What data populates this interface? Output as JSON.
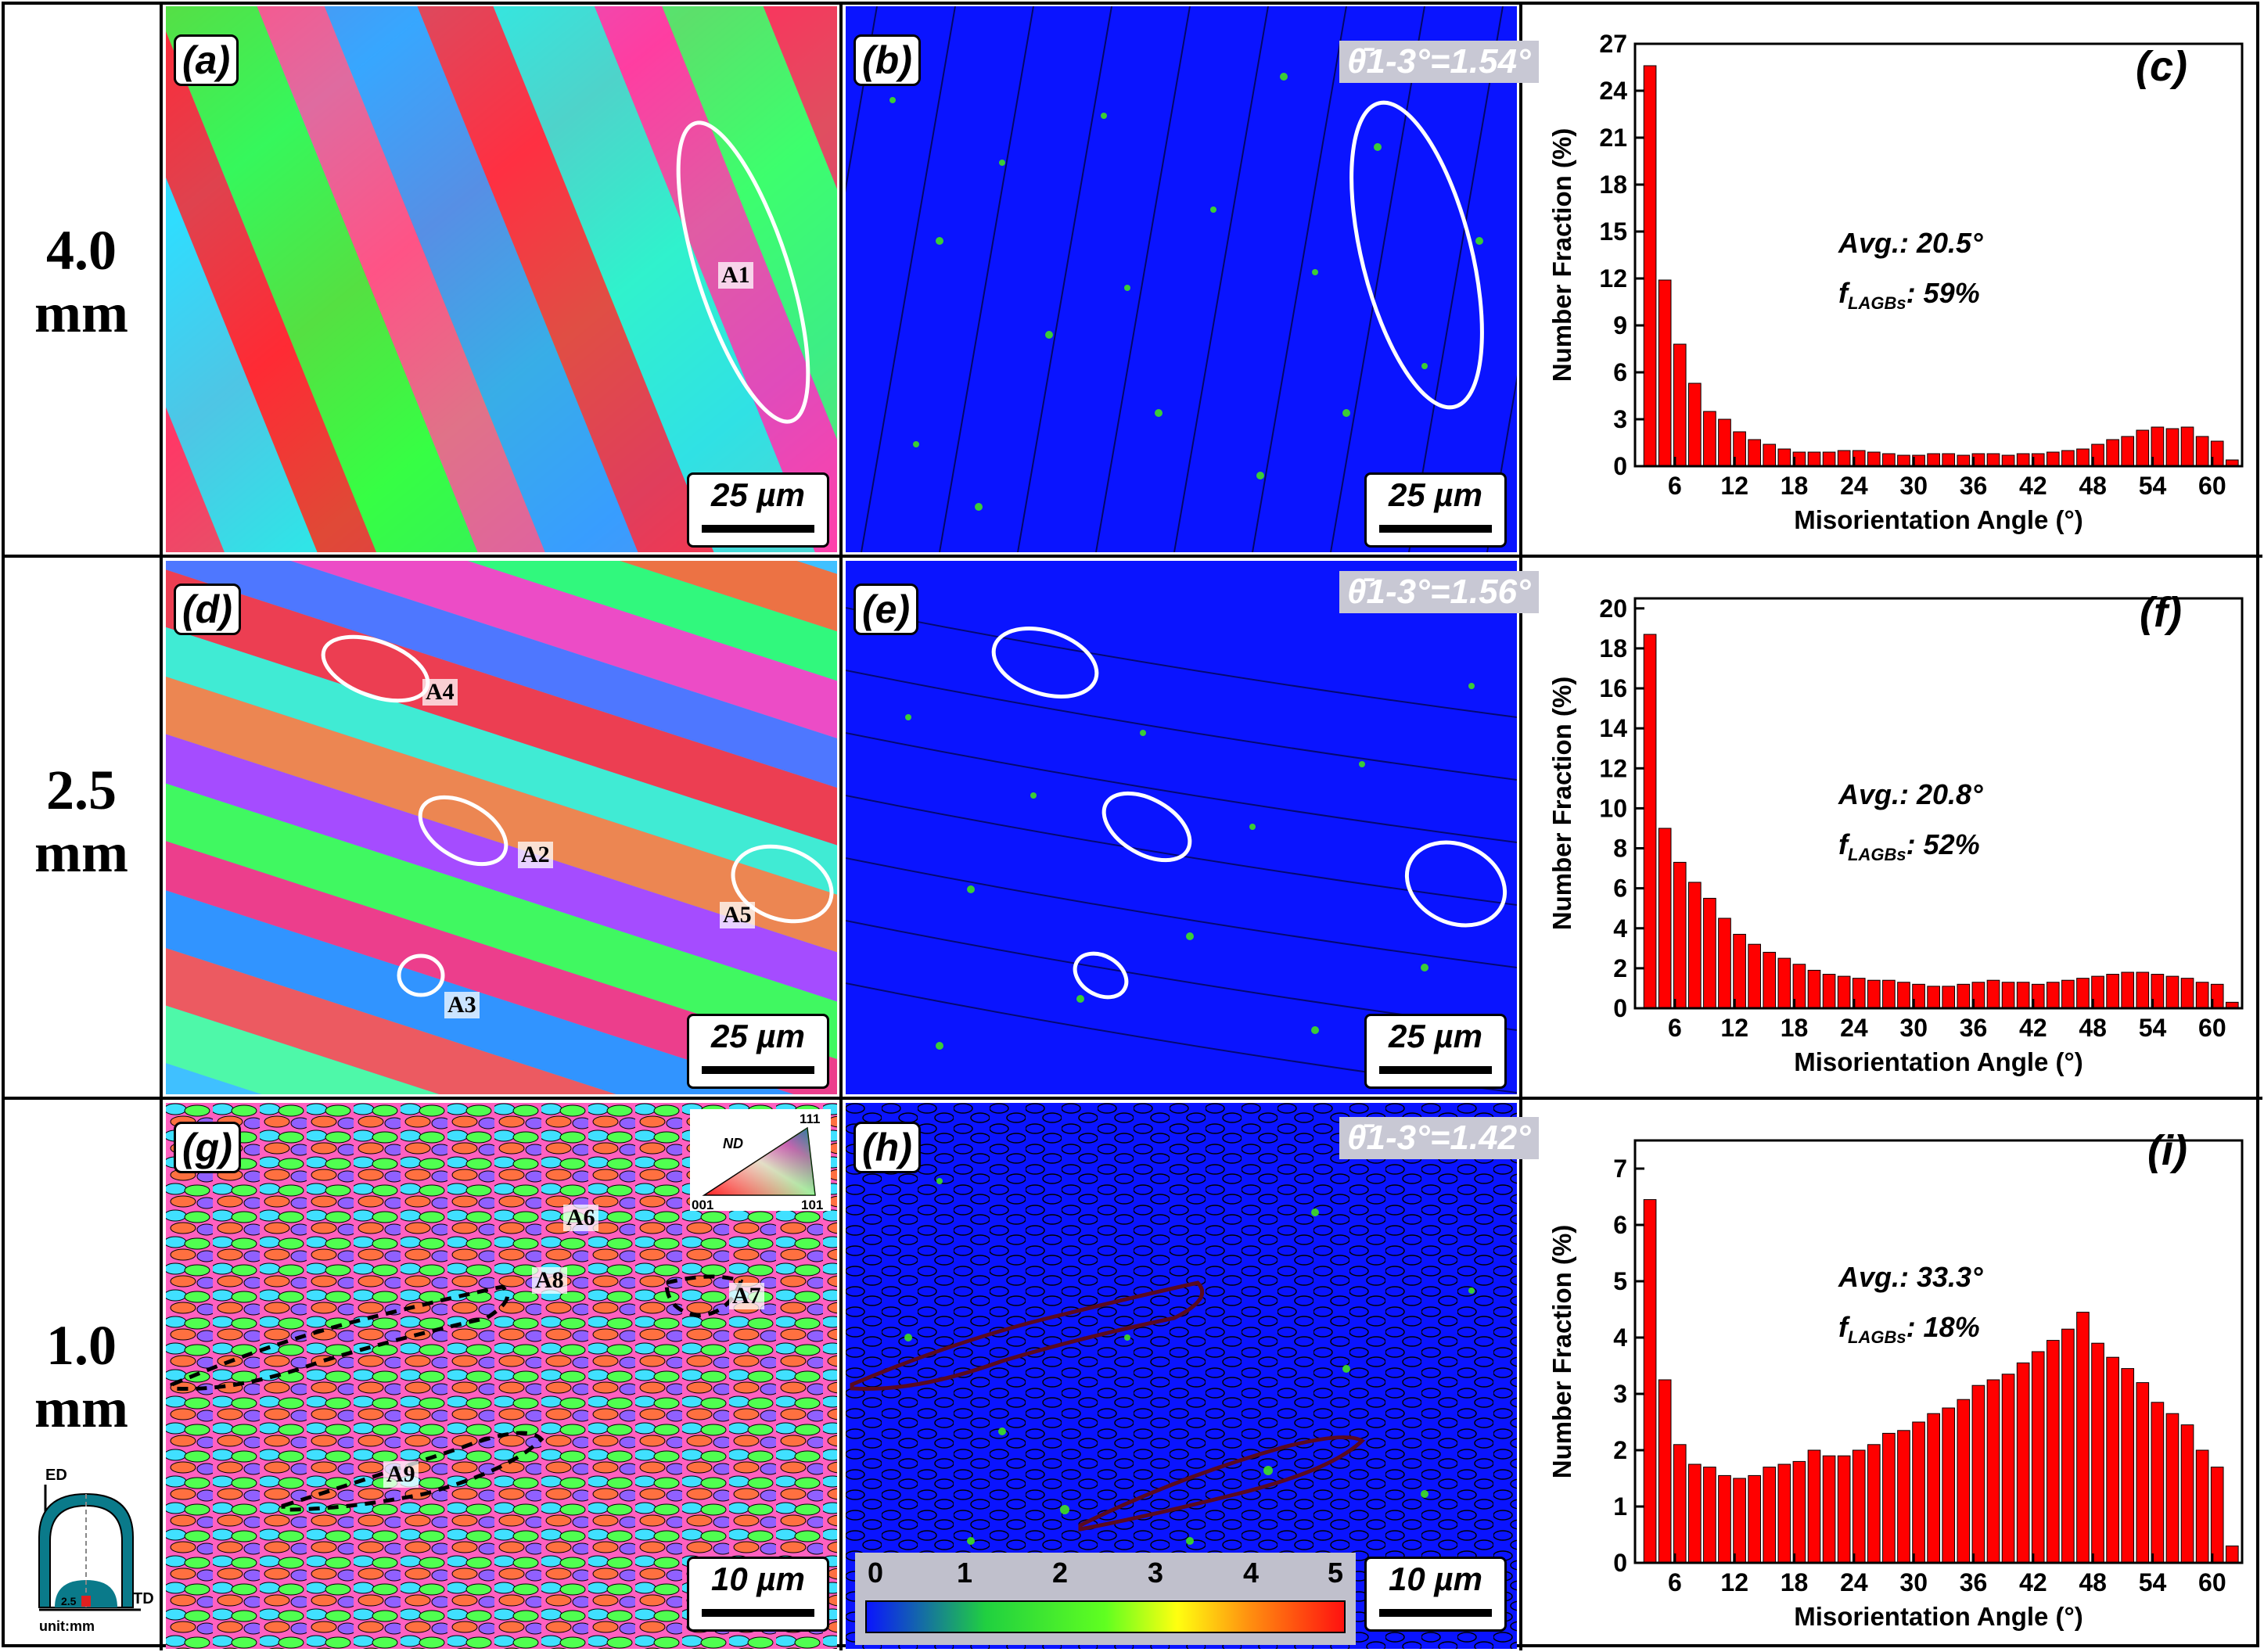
{
  "rows": [
    {
      "thickness": "4.0",
      "unit": "mm"
    },
    {
      "thickness": "2.5",
      "unit": "mm"
    },
    {
      "thickness": "1.0",
      "unit": "mm"
    }
  ],
  "panel_labels": [
    "(a)",
    "(b)",
    "(c)",
    "(d)",
    "(e)",
    "(f)",
    "(g)",
    "(h)",
    "(i)"
  ],
  "scale_bars": [
    "25 µm",
    "25 µm",
    "25 µm",
    "25 µm",
    "10 µm",
    "10 µm"
  ],
  "theta_labels": [
    "θ̄1-3°=1.54°",
    "θ̄1-3°=1.56°",
    "θ̄1-3°=1.42°"
  ],
  "markers": [
    "A1",
    "A2",
    "A3",
    "A4",
    "A5",
    "A6",
    "A7",
    "A8",
    "A9"
  ],
  "ipf_key": {
    "nd": "ND",
    "c111": "111",
    "c001": "001",
    "c101": "101"
  },
  "colorbar": {
    "ticks": [
      "0",
      "1",
      "2",
      "3",
      "4",
      "5"
    ]
  },
  "inset": {
    "ed": "ED",
    "td": "TD",
    "unit": "unit:mm",
    "dim": "2.5"
  },
  "stats": [
    {
      "avg_label": "Avg.",
      "avg_value": ": 20.5°",
      "f_label": "f",
      "f_sub": "LAGBs",
      "f_value": ": 59%"
    },
    {
      "avg_label": "Avg.",
      "avg_value": ": 20.8°",
      "f_label": "f",
      "f_sub": "LAGBs",
      "f_value": ": 52%"
    },
    {
      "avg_label": "Avg.",
      "avg_value": ": 33.3°",
      "f_label": "f",
      "f_sub": "LAGBs",
      "f_value": ": 18%"
    }
  ],
  "colors": {
    "bar": "#ff0000",
    "map_blue": "#0a14ff",
    "lagb_green": "#40e020"
  },
  "chart_data": [
    {
      "type": "bar",
      "panel": "(c)",
      "xlabel": "Misorientation Angle (°)",
      "ylabel": "Number Fraction (%)",
      "xticks": [
        "6",
        "12",
        "18",
        "24",
        "30",
        "36",
        "42",
        "48",
        "54",
        "60"
      ],
      "yticks": [
        "0",
        "3",
        "6",
        "9",
        "12",
        "15",
        "18",
        "21",
        "24",
        "27"
      ],
      "ylim": [
        0,
        27
      ],
      "xlim": [
        2,
        63
      ],
      "x": [
        3.5,
        5,
        6.5,
        8,
        9.5,
        11,
        12.5,
        14,
        15.5,
        17,
        18.5,
        20,
        21.5,
        23,
        24.5,
        26,
        27.5,
        29,
        30.5,
        32,
        33.5,
        35,
        36.5,
        38,
        39.5,
        41,
        42.5,
        44,
        45.5,
        47,
        48.5,
        50,
        51.5,
        53,
        54.5,
        56,
        57.5,
        59,
        60.5,
        62
      ],
      "values": [
        25.6,
        11.9,
        7.8,
        5.3,
        3.5,
        3.0,
        2.2,
        1.7,
        1.4,
        1.1,
        0.9,
        0.9,
        0.9,
        1.0,
        1.0,
        0.9,
        0.8,
        0.7,
        0.7,
        0.8,
        0.8,
        0.7,
        0.8,
        0.8,
        0.7,
        0.8,
        0.8,
        0.9,
        1.0,
        1.1,
        1.4,
        1.7,
        1.9,
        2.3,
        2.5,
        2.4,
        2.5,
        1.9,
        1.6,
        0.4
      ]
    },
    {
      "type": "bar",
      "panel": "(f)",
      "xlabel": "Misorientation Angle (°)",
      "ylabel": "Number Fraction (%)",
      "xticks": [
        "6",
        "12",
        "18",
        "24",
        "30",
        "36",
        "42",
        "48",
        "54",
        "60"
      ],
      "yticks": [
        "0",
        "2",
        "4",
        "6",
        "8",
        "10",
        "12",
        "14",
        "16",
        "18",
        "20"
      ],
      "ylim": [
        0,
        20.5
      ],
      "xlim": [
        2,
        63
      ],
      "x": [
        3.5,
        5,
        6.5,
        8,
        9.5,
        11,
        12.5,
        14,
        15.5,
        17,
        18.5,
        20,
        21.5,
        23,
        24.5,
        26,
        27.5,
        29,
        30.5,
        32,
        33.5,
        35,
        36.5,
        38,
        39.5,
        41,
        42.5,
        44,
        45.5,
        47,
        48.5,
        50,
        51.5,
        53,
        54.5,
        56,
        57.5,
        59,
        60.5,
        62
      ],
      "values": [
        18.7,
        9.0,
        7.3,
        6.3,
        5.5,
        4.5,
        3.7,
        3.2,
        2.8,
        2.5,
        2.2,
        1.9,
        1.7,
        1.6,
        1.5,
        1.4,
        1.4,
        1.3,
        1.2,
        1.1,
        1.1,
        1.2,
        1.3,
        1.4,
        1.3,
        1.3,
        1.2,
        1.3,
        1.4,
        1.5,
        1.6,
        1.7,
        1.8,
        1.8,
        1.7,
        1.6,
        1.5,
        1.3,
        1.2,
        0.3
      ]
    },
    {
      "type": "bar",
      "panel": "(i)",
      "xlabel": "Misorientation Angle (°)",
      "ylabel": "Number Fraction (%)",
      "xticks": [
        "6",
        "12",
        "18",
        "24",
        "30",
        "36",
        "42",
        "48",
        "54",
        "60"
      ],
      "yticks": [
        "0",
        "1",
        "2",
        "3",
        "4",
        "5",
        "6",
        "7"
      ],
      "ylim": [
        0,
        7.5
      ],
      "xlim": [
        2,
        63
      ],
      "x": [
        3.5,
        5,
        6.5,
        8,
        9.5,
        11,
        12.5,
        14,
        15.5,
        17,
        18.5,
        20,
        21.5,
        23,
        24.5,
        26,
        27.5,
        29,
        30.5,
        32,
        33.5,
        35,
        36.5,
        38,
        39.5,
        41,
        42.5,
        44,
        45.5,
        47,
        48.5,
        50,
        51.5,
        53,
        54.5,
        56,
        57.5,
        59,
        60.5,
        62
      ],
      "values": [
        6.45,
        3.25,
        2.1,
        1.75,
        1.7,
        1.55,
        1.5,
        1.55,
        1.7,
        1.75,
        1.8,
        2.0,
        1.9,
        1.9,
        2.0,
        2.1,
        2.3,
        2.35,
        2.5,
        2.65,
        2.75,
        2.9,
        3.15,
        3.25,
        3.35,
        3.55,
        3.75,
        3.95,
        4.15,
        4.45,
        3.9,
        3.65,
        3.45,
        3.2,
        2.85,
        2.65,
        2.45,
        2.0,
        1.7,
        0.3
      ]
    }
  ]
}
